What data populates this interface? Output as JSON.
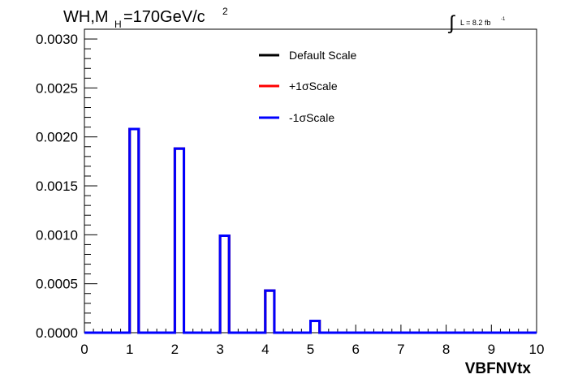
{
  "chart_data": {
    "type": "line",
    "title": {
      "prefix": "WH,M",
      "subscript": "H",
      "suffix": "=170GeV/c",
      "superscript": "2"
    },
    "luminosity": {
      "integral_symbol": "∫",
      "text": "L = 8.2 fb",
      "exponent": "-1"
    },
    "xlabel": "VBFNVtx",
    "ylabel": "",
    "xlim": [
      0,
      10
    ],
    "ylim": [
      0,
      0.0031
    ],
    "x_ticks": [
      "0",
      "1",
      "2",
      "3",
      "4",
      "5",
      "6",
      "7",
      "8",
      "9",
      "10"
    ],
    "y_ticks": [
      "0.0000",
      "0.0005",
      "0.0010",
      "0.0015",
      "0.0020",
      "0.0025",
      "0.0030"
    ],
    "grid": false,
    "legend_position": "top-center",
    "bin_edges": [
      0,
      0.2,
      0.4,
      0.6,
      0.8,
      1.0,
      1.2,
      1.4,
      1.6,
      1.8,
      2.0,
      2.2,
      2.4,
      2.6,
      2.8,
      3.0,
      3.2,
      3.4,
      3.6,
      3.8,
      4.0,
      4.2,
      4.4,
      4.6,
      4.8,
      5.0,
      5.2,
      5.4,
      5.6,
      5.8,
      6.0,
      6.2,
      6.4,
      6.6,
      6.8,
      7.0,
      7.2,
      7.4,
      7.6,
      7.8,
      8.0,
      8.2,
      8.4,
      8.6,
      8.8,
      9.0,
      9.2,
      9.4,
      9.6,
      9.8,
      10.0
    ],
    "series": [
      {
        "name": "Default Scale",
        "color": "#000000",
        "values": [
          0,
          0,
          0,
          0,
          0,
          0.00208,
          0,
          0,
          0,
          0,
          0.00188,
          0,
          0,
          0,
          0,
          0.00099,
          0,
          0,
          0,
          0,
          0.00043,
          0,
          0,
          0,
          0,
          0.00012,
          0,
          0,
          0,
          0,
          0,
          0,
          0,
          0,
          0,
          0,
          0,
          0,
          0,
          0,
          0,
          0,
          0,
          0,
          0,
          0,
          0,
          0,
          0,
          0
        ]
      },
      {
        "name": "+1σScale",
        "color": "#ff0000",
        "values": [
          0,
          0,
          0,
          0,
          0,
          0.00208,
          0,
          0,
          0,
          0,
          0.00188,
          0,
          0,
          0,
          0,
          0.00099,
          0,
          0,
          0,
          0,
          0.00043,
          0,
          0,
          0,
          0,
          0.00012,
          0,
          0,
          0,
          0,
          0,
          0,
          0,
          0,
          0,
          0,
          0,
          0,
          0,
          0,
          0,
          0,
          0,
          0,
          0,
          0,
          0,
          0,
          0,
          0
        ]
      },
      {
        "name": "-1σScale",
        "color": "#0000ff",
        "values": [
          0,
          0,
          0,
          0,
          0,
          0.00208,
          0,
          0,
          0,
          0,
          0.00188,
          0,
          0,
          0,
          0,
          0.00099,
          0,
          0,
          0,
          0,
          0.00043,
          0,
          0,
          0,
          0,
          0.00012,
          0,
          0,
          0,
          0,
          0,
          0,
          0,
          0,
          0,
          0,
          0,
          0,
          0,
          0,
          0,
          0,
          0,
          0,
          0,
          0,
          0,
          0,
          0,
          0
        ]
      }
    ]
  }
}
